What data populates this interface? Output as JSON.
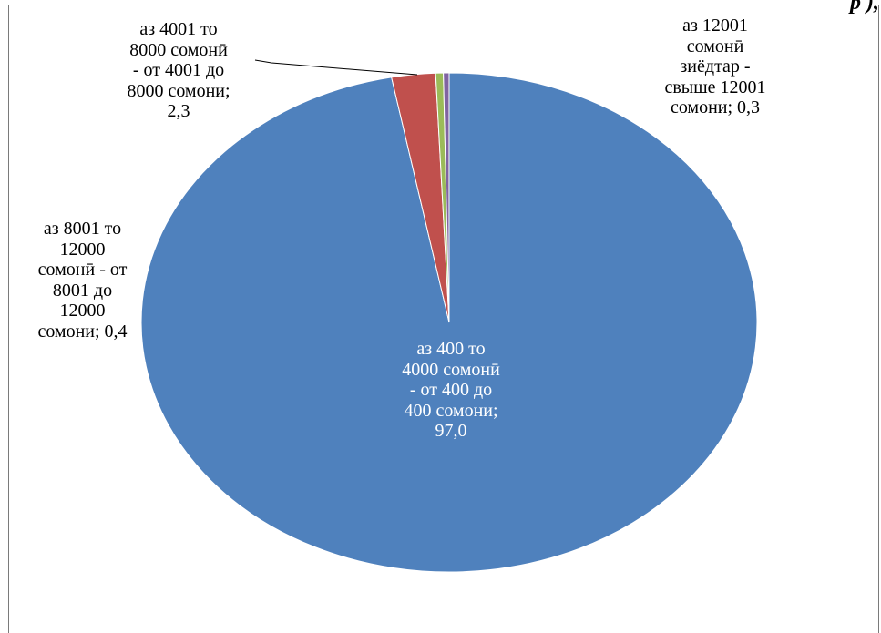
{
  "header_fragment": "р ),",
  "chart_data": {
    "type": "pie",
    "slices": [
      {
        "label": "аз 400 то\n4000 сомонӣ\n- от 400 до\n400 сомони;\n97,0",
        "value": 97.0,
        "color": "#4f81bd"
      },
      {
        "label": "аз 4001 то\n8000 сомонӣ\n- от 4001 до\n8000 сомони;\n2,3",
        "value": 2.3,
        "color": "#c0504d"
      },
      {
        "label": "аз 8001 то\n12000\nсомонӣ - от\n8001 до\n12000\nсомони; 0,4",
        "value": 0.4,
        "color": "#9bbb59"
      },
      {
        "label": "аз 12001\nсомонӣ\nзиёдтар -\nсвыше 12001\nсомони; 0,3",
        "value": 0.3,
        "color": "#8064a2"
      }
    ]
  }
}
